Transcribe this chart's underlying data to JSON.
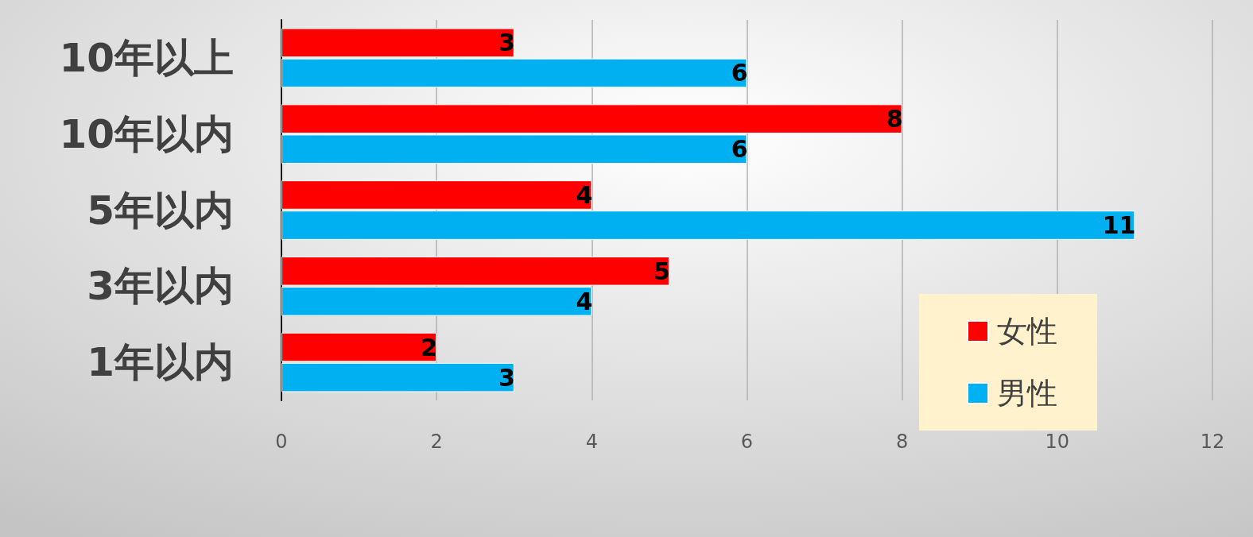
{
  "chart_data": {
    "type": "bar",
    "orientation": "horizontal",
    "categories": [
      "10年以上",
      "10年以内",
      "5年以内",
      "3年以内",
      "1年以内"
    ],
    "series": [
      {
        "name": "女性",
        "color": "#ff0000",
        "values": [
          3,
          8,
          4,
          5,
          2
        ]
      },
      {
        "name": "男性",
        "color": "#00b0f0",
        "values": [
          6,
          6,
          11,
          4,
          3
        ]
      }
    ],
    "xlim": [
      0,
      12
    ],
    "xticks": [
      0,
      2,
      4,
      6,
      8,
      10,
      12
    ],
    "grid": "x",
    "legend": "bottom right",
    "data_labels": true
  }
}
